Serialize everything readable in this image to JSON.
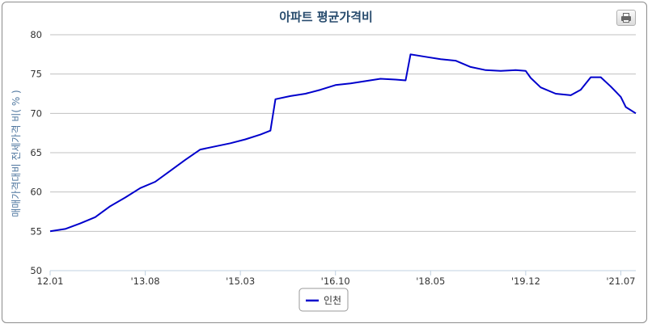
{
  "chart_data": {
    "type": "line",
    "title": "아파트 평균가격비",
    "ylabel": "매매가격대비 전세가격 비( % )",
    "xlabel": "",
    "ylim": [
      50,
      80
    ],
    "yticks": [
      50,
      55,
      60,
      65,
      70,
      75,
      80
    ],
    "xtick_labels": [
      "12.01",
      "'13.08",
      "'15.03",
      "'16.10",
      "'18.05",
      "'19.12",
      "'21.07"
    ],
    "x_start": "2012.01",
    "x_end": "2021.10",
    "legend_position": "bottom-center",
    "grid": true,
    "series": [
      {
        "name": "인천",
        "color": "#0000cc",
        "points": [
          [
            "2012.01",
            55.0
          ],
          [
            "2012.04",
            55.3
          ],
          [
            "2012.07",
            56.0
          ],
          [
            "2012.10",
            56.8
          ],
          [
            "2013.01",
            58.2
          ],
          [
            "2013.04",
            59.3
          ],
          [
            "2013.07",
            60.5
          ],
          [
            "2013.10",
            61.3
          ],
          [
            "2014.01",
            62.7
          ],
          [
            "2014.04",
            64.1
          ],
          [
            "2014.07",
            65.4
          ],
          [
            "2014.10",
            65.8
          ],
          [
            "2015.01",
            66.2
          ],
          [
            "2015.04",
            66.7
          ],
          [
            "2015.07",
            67.3
          ],
          [
            "2015.09",
            67.8
          ],
          [
            "2015.10",
            71.8
          ],
          [
            "2016.01",
            72.2
          ],
          [
            "2016.04",
            72.5
          ],
          [
            "2016.07",
            73.0
          ],
          [
            "2016.10",
            73.6
          ],
          [
            "2017.01",
            73.8
          ],
          [
            "2017.04",
            74.1
          ],
          [
            "2017.07",
            74.4
          ],
          [
            "2017.10",
            74.3
          ],
          [
            "2017.12",
            74.2
          ],
          [
            "2018.01",
            77.5
          ],
          [
            "2018.04",
            77.2
          ],
          [
            "2018.07",
            76.9
          ],
          [
            "2018.10",
            76.7
          ],
          [
            "2019.01",
            75.9
          ],
          [
            "2019.04",
            75.5
          ],
          [
            "2019.07",
            75.4
          ],
          [
            "2019.10",
            75.5
          ],
          [
            "2019.12",
            75.4
          ],
          [
            "2020.01",
            74.5
          ],
          [
            "2020.03",
            73.3
          ],
          [
            "2020.06",
            72.5
          ],
          [
            "2020.09",
            72.3
          ],
          [
            "2020.11",
            73.0
          ],
          [
            "2021.01",
            74.6
          ],
          [
            "2021.03",
            74.6
          ],
          [
            "2021.05",
            73.4
          ],
          [
            "2021.07",
            72.1
          ],
          [
            "2021.08",
            70.8
          ],
          [
            "2021.10",
            70.0
          ]
        ]
      }
    ]
  }
}
